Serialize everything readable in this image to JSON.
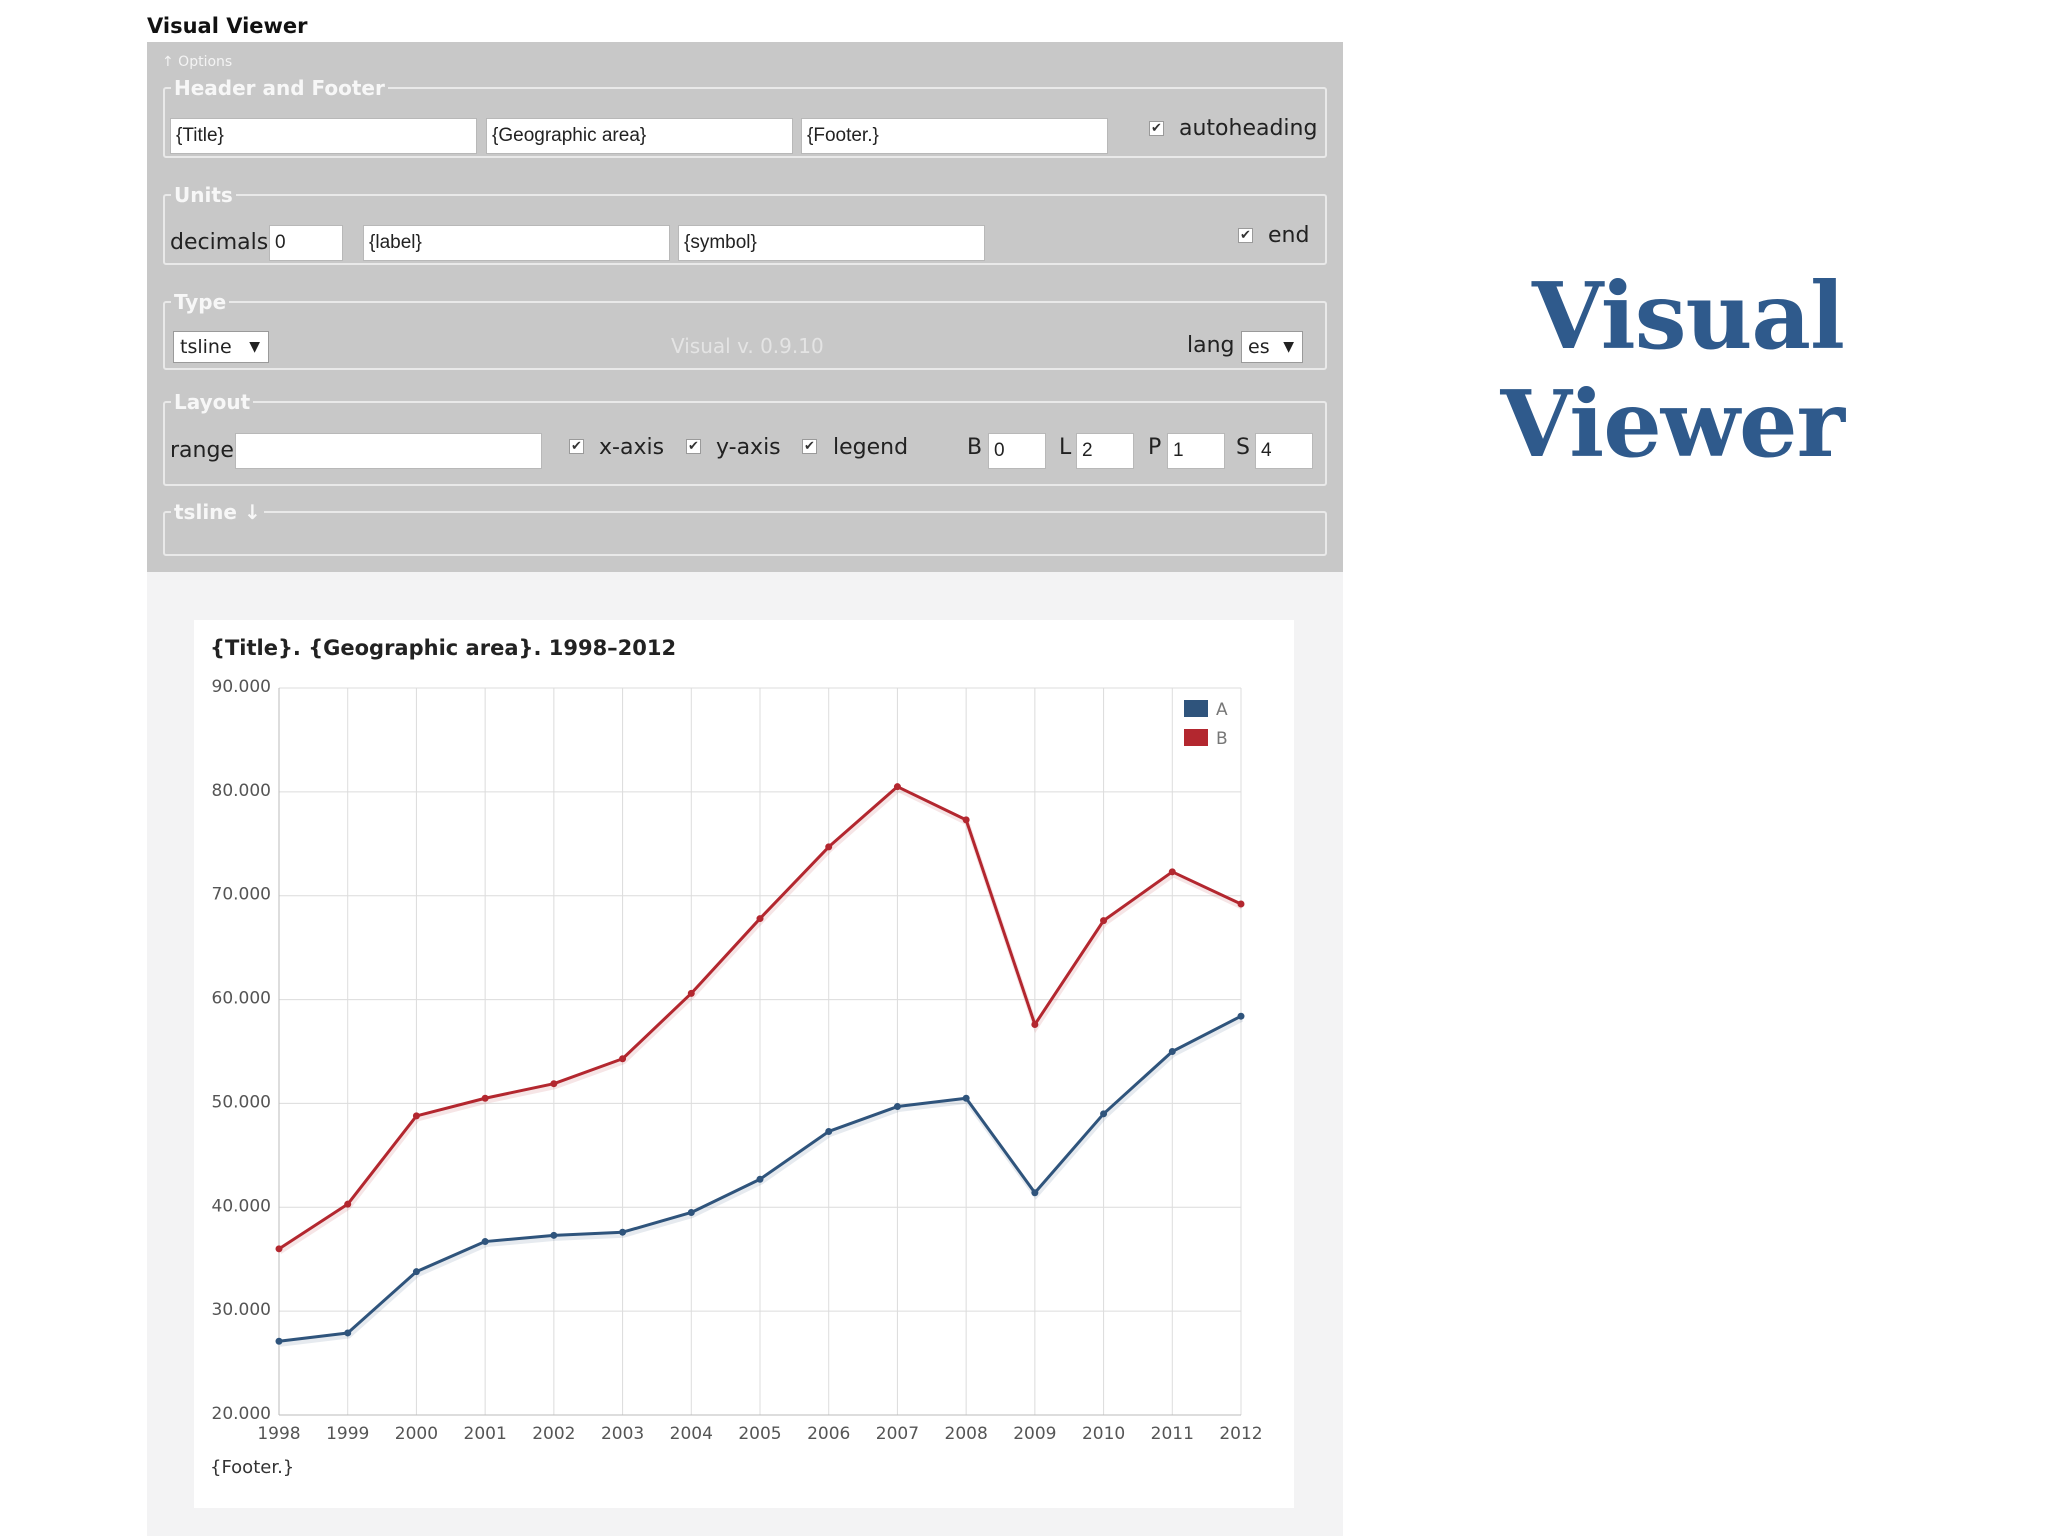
{
  "app": {
    "title": "Visual Viewer"
  },
  "options": {
    "toggle_label": "↑ Options",
    "header_footer": {
      "legend": "Header and Footer",
      "title_value": "{Title}",
      "geo_value": "{Geographic area}",
      "footer_value": "{Footer.}",
      "autoheading_label": "autoheading",
      "autoheading_checked": true
    },
    "units": {
      "legend": "Units",
      "decimals_label": "decimals",
      "decimals_value": "0",
      "label_value": "{label}",
      "symbol_value": "{symbol}",
      "end_label": "end",
      "end_checked": true
    },
    "type": {
      "legend": "Type",
      "selected": "tsline",
      "version": "Visual v. 0.9.10",
      "lang_label": "lang",
      "lang_selected": "es"
    },
    "layout": {
      "legend": "Layout",
      "range_label": "range",
      "range_value": "",
      "xaxis_label": "x-axis",
      "yaxis_label": "y-axis",
      "legend_label": "legend",
      "b_label": "B",
      "b_value": "0",
      "l_label": "L",
      "l_value": "2",
      "p_label": "P",
      "p_value": "1",
      "s_label": "S",
      "s_value": "4"
    },
    "tsline": {
      "legend": "tsline ↓"
    }
  },
  "chart_data": {
    "type": "line",
    "title": "{Title}. {Geographic area}. 1998–2012",
    "footer": "{Footer.}",
    "x": [
      "1998",
      "1999",
      "2000",
      "2001",
      "2002",
      "2003",
      "2004",
      "2005",
      "2006",
      "2007",
      "2008",
      "2009",
      "2010",
      "2011",
      "2012"
    ],
    "y_ticks": [
      "20.000",
      "30.000",
      "40.000",
      "50.000",
      "60.000",
      "70.000",
      "80.000",
      "90.000"
    ],
    "ylim": [
      20000,
      90000
    ],
    "grid": true,
    "legend_position": "top-right",
    "series": [
      {
        "name": "A",
        "color": "#2f547c",
        "values": [
          27100,
          27900,
          33800,
          36700,
          37300,
          37600,
          39500,
          42700,
          47300,
          49700,
          50500,
          41400,
          49000,
          55000,
          58400
        ]
      },
      {
        "name": "B",
        "color": "#b3272f",
        "values": [
          36000,
          40300,
          48800,
          50500,
          51900,
          54300,
          60600,
          67800,
          74700,
          80500,
          77300,
          57600,
          67600,
          72300,
          69200
        ]
      }
    ]
  },
  "brand": {
    "line1": "Visual",
    "line2": "Viewer",
    "color": "#2f5a8c"
  }
}
